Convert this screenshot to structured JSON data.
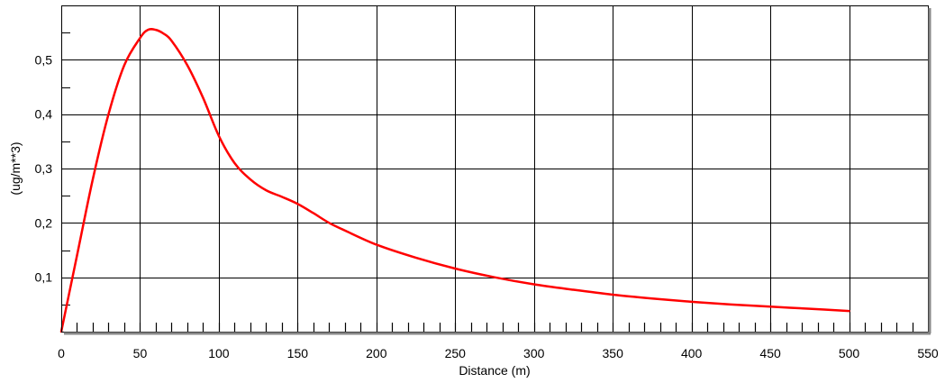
{
  "chart_data": {
    "type": "line",
    "title": "",
    "xlabel": "Distance (m)",
    "ylabel": "(ug/m**3)",
    "xlim": [
      0,
      550
    ],
    "ylim": [
      0,
      0.6
    ],
    "x_ticks": [
      0,
      50,
      100,
      150,
      200,
      250,
      300,
      350,
      400,
      450,
      500,
      550
    ],
    "x_tick_labels": [
      "0",
      "50",
      "100",
      "150",
      "200",
      "250",
      "300",
      "350",
      "400",
      "450",
      "500",
      "550"
    ],
    "y_ticks": [
      0.1,
      0.2,
      0.3,
      0.4,
      0.5
    ],
    "y_tick_labels": [
      "0,1",
      "0,2",
      "0,3",
      "0,4",
      "0,5"
    ],
    "grid": true,
    "line_color": "#ff0000",
    "series": [
      {
        "x": [
          0,
          10,
          20,
          30,
          40,
          50,
          55,
          60,
          65,
          70,
          80,
          90,
          100,
          110,
          120,
          130,
          140,
          150,
          160,
          170,
          180,
          200,
          225,
          250,
          275,
          300,
          325,
          350,
          375,
          400,
          425,
          450,
          475,
          500
        ],
        "values": [
          0.0,
          0.14,
          0.28,
          0.4,
          0.49,
          0.54,
          0.555,
          0.555,
          0.548,
          0.535,
          0.49,
          0.43,
          0.36,
          0.31,
          0.28,
          0.26,
          0.248,
          0.235,
          0.218,
          0.2,
          0.186,
          0.16,
          0.136,
          0.116,
          0.1,
          0.087,
          0.077,
          0.068,
          0.061,
          0.055,
          0.05,
          0.046,
          0.042,
          0.038
        ]
      }
    ]
  }
}
